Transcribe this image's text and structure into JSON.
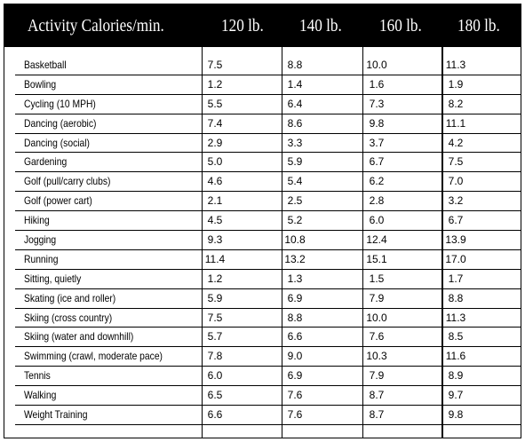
{
  "header": {
    "activity_title": "Activity Calories/min.",
    "weights": [
      "120 lb.",
      "140 lb.",
      "160 lb.",
      "180 lb."
    ]
  },
  "rows": [
    {
      "activity": "Basketball",
      "values": [
        "7.5",
        "8.8",
        "10.0",
        "11.3"
      ]
    },
    {
      "activity": "Bowling",
      "values": [
        "1.2",
        "1.4",
        "1.6",
        "1.9"
      ]
    },
    {
      "activity": "Cycling (10 MPH)",
      "values": [
        "5.5",
        "6.4",
        "7.3",
        "8.2"
      ]
    },
    {
      "activity": "Dancing (aerobic)",
      "values": [
        "7.4",
        "8.6",
        "9.8",
        "11.1"
      ]
    },
    {
      "activity": "Dancing (social)",
      "values": [
        "2.9",
        "3.3",
        "3.7",
        "4.2"
      ]
    },
    {
      "activity": "Gardening",
      "values": [
        "5.0",
        "5.9",
        "6.7",
        "7.5"
      ]
    },
    {
      "activity": "Golf (pull/carry clubs)",
      "values": [
        "4.6",
        "5.4",
        "6.2",
        "7.0"
      ]
    },
    {
      "activity": "Golf (power cart)",
      "values": [
        "2.1",
        "2.5",
        "2.8",
        "3.2"
      ]
    },
    {
      "activity": "Hiking",
      "values": [
        "4.5",
        "5.2",
        "6.0",
        "6.7"
      ]
    },
    {
      "activity": "Jogging",
      "values": [
        "9.3",
        "10.8",
        "12.4",
        "13.9"
      ]
    },
    {
      "activity": "Running",
      "values": [
        "11.4",
        "13.2",
        "15.1",
        "17.0"
      ]
    },
    {
      "activity": "Sitting, quietly",
      "values": [
        "1.2",
        "1.3",
        "1.5",
        "1.7"
      ]
    },
    {
      "activity": "Skating (ice and roller)",
      "values": [
        "5.9",
        "6.9",
        "7.9",
        "8.8"
      ]
    },
    {
      "activity": "Skiing (cross country)",
      "values": [
        "7.5",
        "8.8",
        "10.0",
        "11.3"
      ]
    },
    {
      "activity": "Skiing (water and downhill)",
      "values": [
        "5.7",
        "6.6",
        "7.6",
        "8.5"
      ]
    },
    {
      "activity": "Swimming (crawl, moderate pace)",
      "values": [
        "7.8",
        "9.0",
        "10.3",
        "11.6"
      ]
    },
    {
      "activity": "Tennis",
      "values": [
        "6.0",
        "6.9",
        "7.9",
        "8.9"
      ]
    },
    {
      "activity": "Walking",
      "values": [
        "6.5",
        "7.6",
        "8.7",
        "9.7"
      ]
    },
    {
      "activity": "Weight Training",
      "values": [
        "6.6",
        "7.6",
        "8.7",
        "9.8"
      ]
    }
  ]
}
